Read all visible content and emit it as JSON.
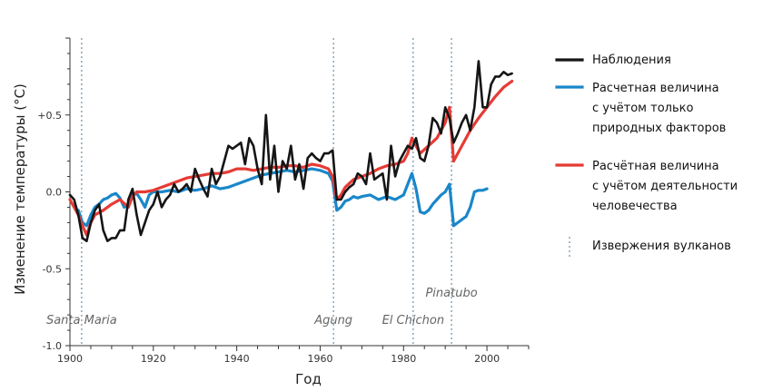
{
  "chart_data": {
    "type": "line",
    "title": "",
    "xlabel": "Год",
    "ylabel": "Изменение температуры (°C)",
    "xlim": [
      1900,
      2010
    ],
    "ylim": [
      -1.0,
      1.0
    ],
    "x_ticks": [
      1900,
      1920,
      1940,
      1960,
      1980,
      2000
    ],
    "y_ticks": [
      {
        "value": 0.5,
        "label": "+0.5"
      },
      {
        "value": 0.0,
        "label": "0.0"
      },
      {
        "value": -0.5,
        "label": "-0.5"
      },
      {
        "value": -1.0,
        "label": "-1.0"
      }
    ],
    "series": [
      {
        "name": "Расчетная величина с учётом только природных факторов",
        "color": "#1a87c9",
        "x": [
          1902,
          1903,
          1904,
          1905,
          1906,
          1907,
          1908,
          1909,
          1910,
          1911,
          1912,
          1913,
          1914,
          1915,
          1916,
          1917,
          1918,
          1919,
          1920,
          1922,
          1924,
          1926,
          1928,
          1930,
          1932,
          1934,
          1936,
          1938,
          1940,
          1942,
          1944,
          1946,
          1948,
          1950,
          1952,
          1954,
          1956,
          1958,
          1960,
          1962,
          1963,
          1964,
          1965,
          1966,
          1967,
          1968,
          1969,
          1970,
          1972,
          1974,
          1976,
          1978,
          1980,
          1981,
          1982,
          1983,
          1984,
          1985,
          1986,
          1987,
          1988,
          1989,
          1990,
          1991,
          1992,
          1993,
          1994,
          1995,
          1996,
          1997,
          1998,
          1999,
          2000
        ],
        "values": [
          -0.12,
          -0.2,
          -0.22,
          -0.15,
          -0.1,
          -0.08,
          -0.05,
          -0.04,
          -0.02,
          -0.01,
          -0.04,
          -0.1,
          -0.08,
          -0.02,
          -0.01,
          -0.05,
          -0.1,
          -0.02,
          0.0,
          0.0,
          0.01,
          0.0,
          0.02,
          0.01,
          0.02,
          0.04,
          0.02,
          0.03,
          0.05,
          0.07,
          0.09,
          0.11,
          0.12,
          0.13,
          0.14,
          0.13,
          0.14,
          0.15,
          0.14,
          0.12,
          0.07,
          -0.12,
          -0.1,
          -0.06,
          -0.05,
          -0.03,
          -0.04,
          -0.03,
          -0.02,
          -0.05,
          -0.03,
          -0.05,
          -0.02,
          0.05,
          0.12,
          0.02,
          -0.13,
          -0.14,
          -0.12,
          -0.08,
          -0.05,
          -0.02,
          0.0,
          0.05,
          -0.22,
          -0.2,
          -0.18,
          -0.16,
          -0.1,
          0.0,
          0.01,
          0.01,
          0.02
        ]
      },
      {
        "name": "Расчётная величина с учётом деятельности человечества",
        "color": "#e53b35",
        "x": [
          1900,
          1902,
          1903,
          1904,
          1905,
          1906,
          1908,
          1910,
          1912,
          1914,
          1915,
          1916,
          1918,
          1920,
          1922,
          1924,
          1926,
          1928,
          1930,
          1932,
          1934,
          1936,
          1938,
          1940,
          1942,
          1944,
          1946,
          1948,
          1950,
          1952,
          1954,
          1956,
          1958,
          1960,
          1962,
          1963,
          1964,
          1965,
          1966,
          1968,
          1970,
          1972,
          1974,
          1976,
          1978,
          1980,
          1981,
          1982,
          1983,
          1984,
          1986,
          1988,
          1990,
          1991,
          1992,
          1994,
          1996,
          1998,
          2000,
          2002,
          2004,
          2006
        ],
        "values": [
          -0.05,
          -0.15,
          -0.22,
          -0.28,
          -0.2,
          -0.15,
          -0.12,
          -0.08,
          -0.05,
          -0.1,
          -0.03,
          0.0,
          0.0,
          0.01,
          0.03,
          0.05,
          0.07,
          0.09,
          0.1,
          0.11,
          0.12,
          0.12,
          0.13,
          0.15,
          0.15,
          0.14,
          0.15,
          0.16,
          0.16,
          0.17,
          0.17,
          0.16,
          0.18,
          0.17,
          0.15,
          0.1,
          -0.05,
          -0.02,
          0.03,
          0.08,
          0.1,
          0.12,
          0.15,
          0.17,
          0.18,
          0.2,
          0.25,
          0.35,
          0.3,
          0.25,
          0.3,
          0.35,
          0.45,
          0.55,
          0.2,
          0.3,
          0.4,
          0.48,
          0.55,
          0.62,
          0.68,
          0.72
        ]
      },
      {
        "name": "Наблюдения",
        "color": "#151515",
        "x": [
          1900,
          1901,
          1902,
          1903,
          1904,
          1905,
          1906,
          1907,
          1908,
          1909,
          1910,
          1911,
          1912,
          1913,
          1914,
          1915,
          1916,
          1917,
          1918,
          1919,
          1920,
          1921,
          1922,
          1923,
          1924,
          1925,
          1926,
          1927,
          1928,
          1929,
          1930,
          1931,
          1932,
          1933,
          1934,
          1935,
          1936,
          1937,
          1938,
          1939,
          1940,
          1941,
          1942,
          1943,
          1944,
          1945,
          1946,
          1947,
          1948,
          1949,
          1950,
          1951,
          1952,
          1953,
          1954,
          1955,
          1956,
          1957,
          1958,
          1959,
          1960,
          1961,
          1962,
          1963,
          1964,
          1965,
          1966,
          1967,
          1968,
          1969,
          1970,
          1971,
          1972,
          1973,
          1974,
          1975,
          1976,
          1977,
          1978,
          1979,
          1980,
          1981,
          1982,
          1983,
          1984,
          1985,
          1986,
          1987,
          1988,
          1989,
          1990,
          1991,
          1992,
          1993,
          1994,
          1995,
          1996,
          1997,
          1998,
          1999,
          2000,
          2001,
          2002,
          2003,
          2004,
          2005,
          2006
        ],
        "values": [
          -0.02,
          -0.05,
          -0.15,
          -0.3,
          -0.32,
          -0.2,
          -0.12,
          -0.08,
          -0.25,
          -0.32,
          -0.3,
          -0.3,
          -0.25,
          -0.25,
          -0.05,
          0.02,
          -0.15,
          -0.28,
          -0.2,
          -0.12,
          -0.08,
          0.0,
          -0.1,
          -0.05,
          -0.02,
          0.05,
          0.0,
          0.02,
          0.05,
          0.0,
          0.15,
          0.08,
          0.02,
          -0.03,
          0.15,
          0.05,
          0.1,
          0.2,
          0.3,
          0.28,
          0.3,
          0.32,
          0.18,
          0.35,
          0.3,
          0.15,
          0.05,
          0.5,
          0.08,
          0.3,
          0.0,
          0.2,
          0.15,
          0.3,
          0.08,
          0.18,
          0.02,
          0.22,
          0.25,
          0.22,
          0.2,
          0.25,
          0.25,
          0.27,
          -0.05,
          -0.05,
          0.0,
          0.03,
          0.05,
          0.12,
          0.1,
          0.05,
          0.25,
          0.08,
          0.1,
          0.12,
          -0.05,
          0.3,
          0.1,
          0.2,
          0.25,
          0.3,
          0.28,
          0.35,
          0.22,
          0.2,
          0.3,
          0.48,
          0.45,
          0.38,
          0.55,
          0.48,
          0.32,
          0.38,
          0.45,
          0.5,
          0.4,
          0.55,
          0.85,
          0.55,
          0.55,
          0.7,
          0.75,
          0.75,
          0.78,
          0.76,
          0.77
        ]
      }
    ],
    "volcanoes": [
      {
        "name": "Santa Maria",
        "year": 1902.8,
        "label_level": "low"
      },
      {
        "name": "Agung",
        "year": 1963.2,
        "label_level": "low"
      },
      {
        "name": "El Chichon",
        "year": 1982.3,
        "label_level": "low"
      },
      {
        "name": "Pinatubo",
        "year": 1991.5,
        "label_level": "high"
      }
    ],
    "legend": {
      "placement": "right",
      "items": [
        {
          "key": "observed",
          "lines": [
            "Наблюдения"
          ],
          "color": "#151515",
          "style": "solid"
        },
        {
          "key": "natural",
          "lines": [
            "Расчетная величина",
            "с учётом только",
            "природных факторов"
          ],
          "color": "#1a87c9",
          "style": "solid"
        },
        {
          "key": "human",
          "lines": [
            "Расчётная величина",
            "с учётом деятельности",
            "человечества"
          ],
          "color": "#e53b35",
          "style": "solid"
        },
        {
          "key": "volcanic",
          "lines": [
            "Извержения вулканов"
          ],
          "color": "#6a8fa8",
          "style": "dotted"
        }
      ]
    }
  }
}
